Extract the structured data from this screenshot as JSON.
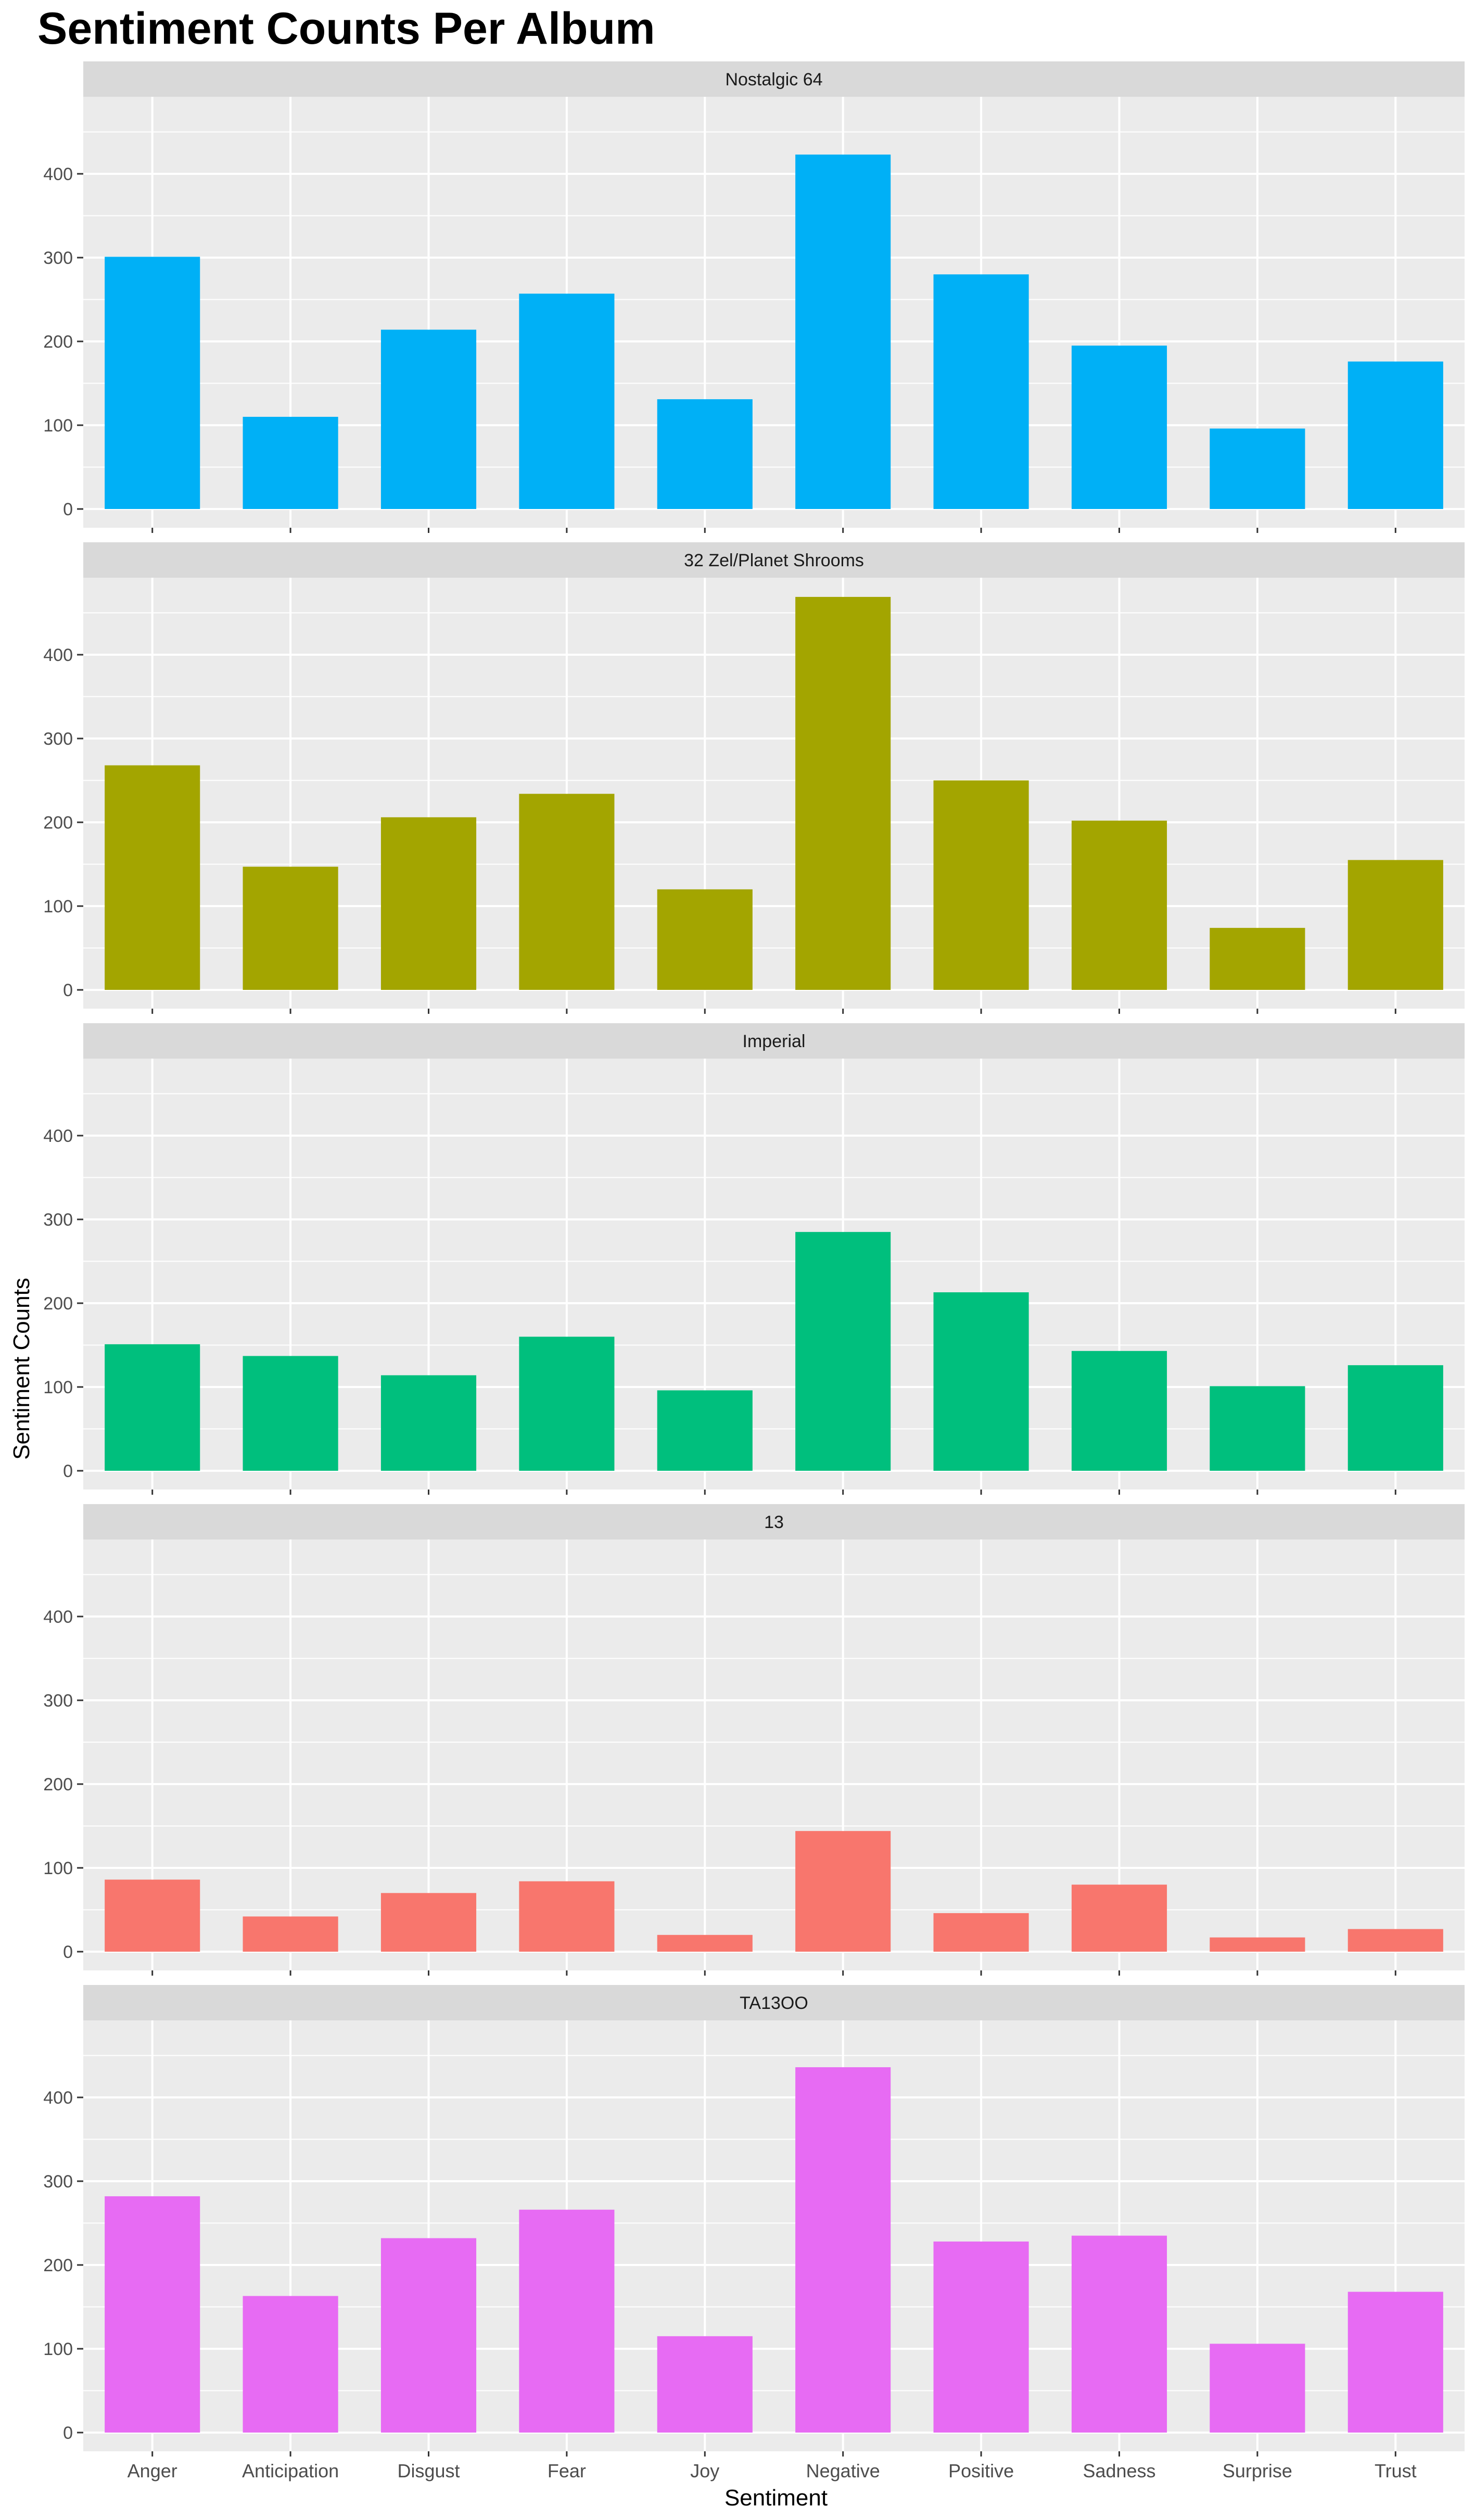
{
  "chart_data": {
    "type": "bar",
    "title": "Sentiment Counts Per Album",
    "xlabel": "Sentiment",
    "ylabel": "Sentiment Counts",
    "categories": [
      "Anger",
      "Anticipation",
      "Disgust",
      "Fear",
      "Joy",
      "Negative",
      "Positive",
      "Sadness",
      "Surprise",
      "Trust"
    ],
    "yticks": [
      "0",
      "100",
      "200",
      "300",
      "400"
    ],
    "ylim": [
      -20,
      500
    ],
    "grid": true,
    "legend": "none",
    "facets": [
      {
        "name": "Nostalgic 64",
        "color": "#00B0F6",
        "values": [
          301,
          110,
          214,
          257,
          131,
          423,
          280,
          195,
          96,
          176
        ]
      },
      {
        "name": "32 Zel/Planet Shrooms",
        "color": "#A3A500",
        "values": [
          268,
          147,
          206,
          234,
          120,
          469,
          250,
          202,
          74,
          155
        ]
      },
      {
        "name": "Imperial",
        "color": "#00BF7D",
        "values": [
          151,
          137,
          114,
          160,
          96,
          285,
          213,
          143,
          101,
          126
        ]
      },
      {
        "name": "13",
        "color": "#F8766D",
        "values": [
          86,
          42,
          70,
          84,
          20,
          144,
          46,
          80,
          17,
          27
        ]
      },
      {
        "name": "TA13OO",
        "color": "#E76BF3",
        "values": [
          282,
          163,
          232,
          266,
          115,
          436,
          228,
          235,
          106,
          168
        ]
      }
    ]
  }
}
